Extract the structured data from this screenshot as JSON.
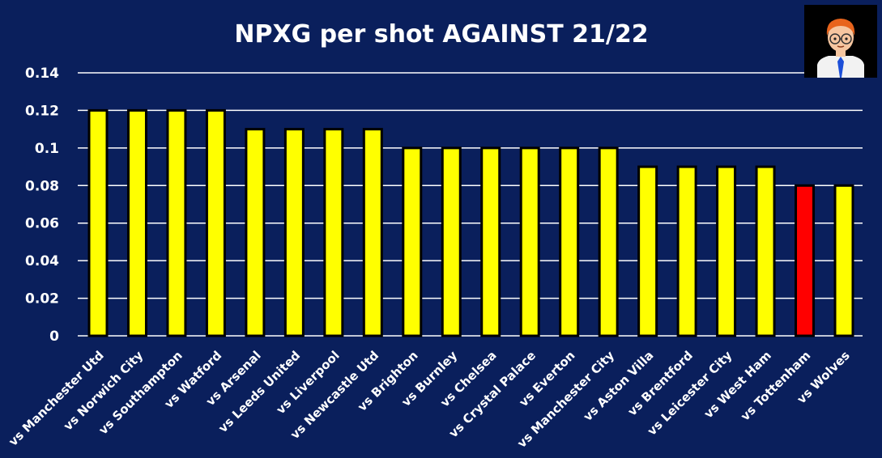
{
  "chart_data": {
    "type": "bar",
    "title": "NPXG per shot AGAINST 21/22",
    "xlabel": "",
    "ylabel": "",
    "ylim": [
      0,
      0.14
    ],
    "yticks": [
      "0",
      "0.02",
      "0.04",
      "0.06",
      "0.08",
      "0.1",
      "0.12",
      "0.14"
    ],
    "ytick_values": [
      0,
      0.02,
      0.04,
      0.06,
      0.08,
      0.1,
      0.12,
      0.14
    ],
    "grid": true,
    "categories": [
      "vs Manchester Utd",
      "vs Norwich City",
      "vs Southampton",
      "vs Watford",
      "vs Arsenal",
      "vs Leeds United",
      "vs Liverpool",
      "vs Newcastle Utd",
      "vs Brighton",
      "vs Burnley",
      "vs Chelsea",
      "vs Crystal Palace",
      "vs Everton",
      "vs Manchester City",
      "vs Aston Villa",
      "vs Brentford",
      "vs Leicester City",
      "vs West Ham",
      "vs Tottenham",
      "vs Wolves"
    ],
    "values": [
      0.12,
      0.12,
      0.12,
      0.12,
      0.11,
      0.11,
      0.11,
      0.11,
      0.1,
      0.1,
      0.1,
      0.1,
      0.1,
      0.1,
      0.09,
      0.09,
      0.09,
      0.09,
      0.08,
      0.08
    ],
    "highlight_category": "vs Tottenham",
    "colors": {
      "background": "#0a1f5c",
      "bar": "#ffff00",
      "highlight": "#ff0000",
      "bar_outline": "#000000",
      "text": "#ffffff",
      "grid": "#ffffff"
    }
  },
  "avatar": {
    "icon": "cartoon-person-icon"
  }
}
